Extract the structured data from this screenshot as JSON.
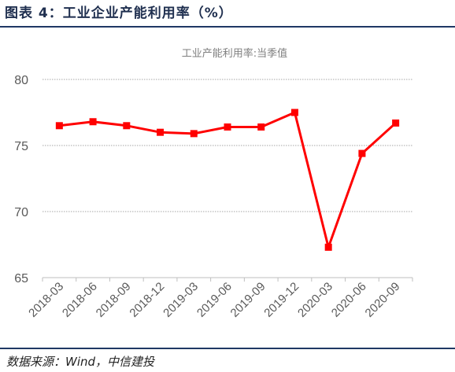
{
  "header": {
    "figure_title": "图表 4：工业企业产能利用率（%）",
    "source": "数据来源：Wind，中信建投"
  },
  "colors": {
    "series": "#ff0000",
    "grid": "#a6a6a6",
    "header_rule": "#1f3864"
  },
  "chart_data": {
    "type": "line",
    "title": "工业产能利用率:当季值",
    "xlabel": "",
    "ylabel": "",
    "grid": "horizontal",
    "legend": "none",
    "ylim": [
      65,
      80
    ],
    "yticks": [
      65,
      70,
      75,
      80
    ],
    "categories": [
      "2018-03",
      "2018-06",
      "2018-09",
      "2018-12",
      "2019-03",
      "2019-06",
      "2019-09",
      "2019-12",
      "2020-03",
      "2020-06",
      "2020-09"
    ],
    "series": [
      {
        "values": [
          76.5,
          76.8,
          76.5,
          76.0,
          75.9,
          76.4,
          76.4,
          77.5,
          67.3,
          74.4,
          76.7
        ],
        "marker": "square"
      }
    ]
  }
}
